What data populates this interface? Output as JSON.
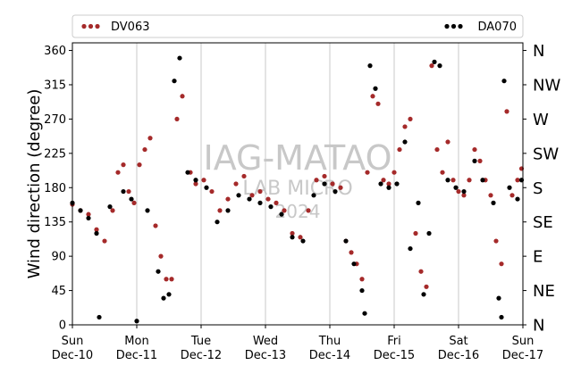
{
  "chart_data": {
    "type": "scatter",
    "ylabel": "Wind direction (degree)",
    "xlabel": "",
    "ylim": [
      0,
      370
    ],
    "yticks": [
      0,
      45,
      90,
      135,
      180,
      225,
      270,
      315,
      360
    ],
    "compass_ticks": [
      {
        "value": 0,
        "label": "N"
      },
      {
        "value": 45,
        "label": "NE"
      },
      {
        "value": 90,
        "label": "E"
      },
      {
        "value": 135,
        "label": "SE"
      },
      {
        "value": 180,
        "label": "S"
      },
      {
        "value": 225,
        "label": "SW"
      },
      {
        "value": 270,
        "label": "W"
      },
      {
        "value": 315,
        "label": "NW"
      },
      {
        "value": 360,
        "label": "N"
      }
    ],
    "xlim": [
      "2024-12-10 00:00",
      "2024-12-17 00:00"
    ],
    "xticks": [
      {
        "date": "2024-12-10",
        "day": "Sun",
        "label": "Dec-10"
      },
      {
        "date": "2024-12-11",
        "day": "Mon",
        "label": "Dec-11"
      },
      {
        "date": "2024-12-12",
        "day": "Tue",
        "label": "Dec-12"
      },
      {
        "date": "2024-12-13",
        "day": "Wed",
        "label": "Dec-13"
      },
      {
        "date": "2024-12-14",
        "day": "Thu",
        "label": "Dec-14"
      },
      {
        "date": "2024-12-15",
        "day": "Fri",
        "label": "Dec-15"
      },
      {
        "date": "2024-12-16",
        "day": "Sat",
        "label": "Dec-16"
      },
      {
        "date": "2024-12-17",
        "day": "Sun",
        "label": "Dec-17"
      }
    ],
    "grid": "vertical",
    "legend_position": "top",
    "series": [
      {
        "name": "DV063",
        "color": "#a52a2a",
        "points": [
          [
            "2024-12-10 00:00",
            158
          ],
          [
            "2024-12-10 03:00",
            150
          ],
          [
            "2024-12-10 06:00",
            145
          ],
          [
            "2024-12-10 09:00",
            125
          ],
          [
            "2024-12-10 12:00",
            110
          ],
          [
            "2024-12-10 15:00",
            150
          ],
          [
            "2024-12-10 17:00",
            200
          ],
          [
            "2024-12-10 19:00",
            210
          ],
          [
            "2024-12-10 21:00",
            175
          ],
          [
            "2024-12-10 23:00",
            160
          ],
          [
            "2024-12-11 01:00",
            210
          ],
          [
            "2024-12-11 03:00",
            230
          ],
          [
            "2024-12-11 05:00",
            245
          ],
          [
            "2024-12-11 07:00",
            130
          ],
          [
            "2024-12-11 09:00",
            90
          ],
          [
            "2024-12-11 11:00",
            60
          ],
          [
            "2024-12-11 13:00",
            60
          ],
          [
            "2024-12-11 15:00",
            270
          ],
          [
            "2024-12-11 17:00",
            300
          ],
          [
            "2024-12-11 20:00",
            200
          ],
          [
            "2024-12-11 22:00",
            185
          ],
          [
            "2024-12-12 01:00",
            190
          ],
          [
            "2024-12-12 04:00",
            175
          ],
          [
            "2024-12-12 07:00",
            150
          ],
          [
            "2024-12-12 10:00",
            165
          ],
          [
            "2024-12-12 13:00",
            185
          ],
          [
            "2024-12-12 16:00",
            195
          ],
          [
            "2024-12-12 19:00",
            170
          ],
          [
            "2024-12-12 22:00",
            175
          ],
          [
            "2024-12-13 01:00",
            165
          ],
          [
            "2024-12-13 04:00",
            160
          ],
          [
            "2024-12-13 07:00",
            150
          ],
          [
            "2024-12-13 10:00",
            120
          ],
          [
            "2024-12-13 13:00",
            115
          ],
          [
            "2024-12-13 16:00",
            150
          ],
          [
            "2024-12-13 19:00",
            190
          ],
          [
            "2024-12-13 22:00",
            195
          ],
          [
            "2024-12-14 01:00",
            185
          ],
          [
            "2024-12-14 04:00",
            180
          ],
          [
            "2024-12-14 06:00",
            110
          ],
          [
            "2024-12-14 08:00",
            95
          ],
          [
            "2024-12-14 10:00",
            80
          ],
          [
            "2024-12-14 12:00",
            60
          ],
          [
            "2024-12-14 14:00",
            200
          ],
          [
            "2024-12-14 16:00",
            300
          ],
          [
            "2024-12-14 18:00",
            290
          ],
          [
            "2024-12-14 20:00",
            190
          ],
          [
            "2024-12-14 22:00",
            185
          ],
          [
            "2024-12-15 00:00",
            200
          ],
          [
            "2024-12-15 02:00",
            230
          ],
          [
            "2024-12-15 04:00",
            260
          ],
          [
            "2024-12-15 06:00",
            270
          ],
          [
            "2024-12-15 08:00",
            120
          ],
          [
            "2024-12-15 10:00",
            70
          ],
          [
            "2024-12-15 12:00",
            50
          ],
          [
            "2024-12-15 14:00",
            340
          ],
          [
            "2024-12-15 16:00",
            230
          ],
          [
            "2024-12-15 18:00",
            200
          ],
          [
            "2024-12-15 20:00",
            240
          ],
          [
            "2024-12-15 22:00",
            190
          ],
          [
            "2024-12-16 00:00",
            175
          ],
          [
            "2024-12-16 02:00",
            170
          ],
          [
            "2024-12-16 04:00",
            190
          ],
          [
            "2024-12-16 06:00",
            230
          ],
          [
            "2024-12-16 08:00",
            215
          ],
          [
            "2024-12-16 10:00",
            190
          ],
          [
            "2024-12-16 12:00",
            170
          ],
          [
            "2024-12-16 14:00",
            110
          ],
          [
            "2024-12-16 16:00",
            80
          ],
          [
            "2024-12-16 18:00",
            280
          ],
          [
            "2024-12-16 20:00",
            170
          ],
          [
            "2024-12-16 22:00",
            190
          ],
          [
            "2024-12-16 23:30",
            205
          ]
        ]
      },
      {
        "name": "DA070",
        "color": "#000000",
        "points": [
          [
            "2024-12-10 00:00",
            160
          ],
          [
            "2024-12-10 03:00",
            150
          ],
          [
            "2024-12-10 06:00",
            140
          ],
          [
            "2024-12-10 09:00",
            120
          ],
          [
            "2024-12-10 10:00",
            10
          ],
          [
            "2024-12-10 14:00",
            155
          ],
          [
            "2024-12-10 19:00",
            175
          ],
          [
            "2024-12-10 22:00",
            165
          ],
          [
            "2024-12-11 00:00",
            5
          ],
          [
            "2024-12-11 04:00",
            150
          ],
          [
            "2024-12-11 08:00",
            70
          ],
          [
            "2024-12-11 10:00",
            35
          ],
          [
            "2024-12-11 12:00",
            40
          ],
          [
            "2024-12-11 14:00",
            320
          ],
          [
            "2024-12-11 16:00",
            350
          ],
          [
            "2024-12-11 19:00",
            200
          ],
          [
            "2024-12-11 22:00",
            190
          ],
          [
            "2024-12-12 02:00",
            180
          ],
          [
            "2024-12-12 06:00",
            135
          ],
          [
            "2024-12-12 10:00",
            150
          ],
          [
            "2024-12-12 14:00",
            170
          ],
          [
            "2024-12-12 18:00",
            165
          ],
          [
            "2024-12-12 22:00",
            160
          ],
          [
            "2024-12-13 02:00",
            155
          ],
          [
            "2024-12-13 06:00",
            145
          ],
          [
            "2024-12-13 10:00",
            115
          ],
          [
            "2024-12-13 14:00",
            110
          ],
          [
            "2024-12-13 18:00",
            170
          ],
          [
            "2024-12-13 22:00",
            185
          ],
          [
            "2024-12-14 02:00",
            175
          ],
          [
            "2024-12-14 06:00",
            110
          ],
          [
            "2024-12-14 09:00",
            80
          ],
          [
            "2024-12-14 12:00",
            45
          ],
          [
            "2024-12-14 13:00",
            15
          ],
          [
            "2024-12-14 15:00",
            340
          ],
          [
            "2024-12-14 17:00",
            310
          ],
          [
            "2024-12-14 19:00",
            185
          ],
          [
            "2024-12-14 22:00",
            180
          ],
          [
            "2024-12-15 01:00",
            185
          ],
          [
            "2024-12-15 04:00",
            240
          ],
          [
            "2024-12-15 06:00",
            100
          ],
          [
            "2024-12-15 09:00",
            160
          ],
          [
            "2024-12-15 11:00",
            40
          ],
          [
            "2024-12-15 13:00",
            120
          ],
          [
            "2024-12-15 15:00",
            345
          ],
          [
            "2024-12-15 17:00",
            340
          ],
          [
            "2024-12-15 20:00",
            190
          ],
          [
            "2024-12-15 23:00",
            180
          ],
          [
            "2024-12-16 02:00",
            175
          ],
          [
            "2024-12-16 06:00",
            215
          ],
          [
            "2024-12-16 09:00",
            190
          ],
          [
            "2024-12-16 13:00",
            160
          ],
          [
            "2024-12-16 15:00",
            35
          ],
          [
            "2024-12-16 16:00",
            10
          ],
          [
            "2024-12-16 17:00",
            320
          ],
          [
            "2024-12-16 19:00",
            180
          ],
          [
            "2024-12-16 22:00",
            165
          ],
          [
            "2024-12-16 23:30",
            190
          ]
        ]
      }
    ],
    "watermark": [
      "IAG-MATAO",
      "LAB MICRO",
      "2024"
    ]
  }
}
